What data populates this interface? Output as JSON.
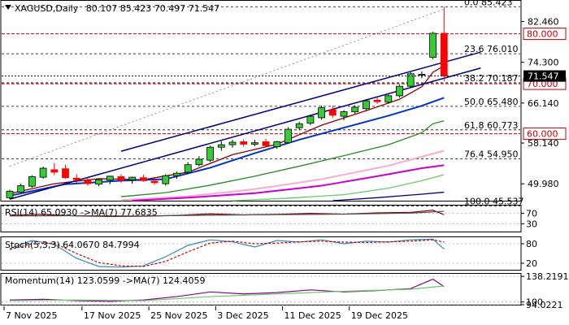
{
  "header": {
    "symbol": "XAGUSD,Daily",
    "ohlc": "80.107 85.423 70.497 71.547"
  },
  "colors": {
    "background": "#ffffff",
    "bull_candle": "#33cc33",
    "bear_candle": "#ff0000",
    "wick": "#000000",
    "price_line": "#000000",
    "channel": "#000080",
    "fib": "#000000",
    "resistance": "#cc0000",
    "ema_short": "#8b0000",
    "ema_mid": "#0033cc",
    "ema_long": "#228b22",
    "ema_pink": "#ffaacc",
    "ema_magenta": "#cc00cc",
    "ema_light_green": "#66cc66",
    "ema_navy": "#000080",
    "rsi_line": "#8b0000",
    "rsi_ma": "#4d4d4d",
    "stoch_k": "#2e8bc0",
    "stoch_d": "#cc0000",
    "momentum_line": "#8b008b",
    "momentum_ma": "#66cc66",
    "current_price_bg": "#000000"
  },
  "chart_data": [
    {
      "type": "candlestick",
      "title": "XAGUSD,Daily 80.107 85.423 70.497 71.547",
      "ylim": [
        46.6,
        86.6
      ],
      "x_labels": [
        "7 Nov 2025",
        "17 Nov 2025",
        "25 Nov 2025",
        "3 Dec 2025",
        "11 Dec 2025",
        "19 Dec 2025"
      ],
      "y_ticks": [
        "82.460",
        "74.300",
        "66.140",
        "58.140",
        "49.980"
      ],
      "candles": [
        {
          "o": 47.2,
          "h": 48.8,
          "l": 46.9,
          "c": 48.5
        },
        {
          "o": 48.3,
          "h": 50.0,
          "l": 48.0,
          "c": 49.6
        },
        {
          "o": 49.5,
          "h": 51.7,
          "l": 49.2,
          "c": 51.4
        },
        {
          "o": 51.3,
          "h": 53.4,
          "l": 51.0,
          "c": 53.1
        },
        {
          "o": 52.8,
          "h": 54.1,
          "l": 51.7,
          "c": 52.3
        },
        {
          "o": 53.0,
          "h": 53.8,
          "l": 51.0,
          "c": 51.2
        },
        {
          "o": 51.1,
          "h": 51.9,
          "l": 50.2,
          "c": 50.8
        },
        {
          "o": 50.6,
          "h": 51.3,
          "l": 49.6,
          "c": 50.0
        },
        {
          "o": 49.9,
          "h": 51.0,
          "l": 49.5,
          "c": 50.8
        },
        {
          "o": 50.7,
          "h": 51.6,
          "l": 49.9,
          "c": 51.5
        },
        {
          "o": 51.4,
          "h": 51.9,
          "l": 50.2,
          "c": 50.7
        },
        {
          "o": 50.8,
          "h": 51.4,
          "l": 50.0,
          "c": 51.3
        },
        {
          "o": 51.2,
          "h": 51.8,
          "l": 50.4,
          "c": 50.6
        },
        {
          "o": 50.5,
          "h": 51.1,
          "l": 49.8,
          "c": 50.2
        },
        {
          "o": 50.0,
          "h": 51.9,
          "l": 49.6,
          "c": 51.6
        },
        {
          "o": 51.6,
          "h": 52.4,
          "l": 51.0,
          "c": 52.1
        },
        {
          "o": 52.3,
          "h": 54.3,
          "l": 51.9,
          "c": 53.8
        },
        {
          "o": 53.8,
          "h": 55.5,
          "l": 53.5,
          "c": 54.9
        },
        {
          "o": 54.7,
          "h": 57.6,
          "l": 54.3,
          "c": 57.3
        },
        {
          "o": 57.3,
          "h": 58.5,
          "l": 56.6,
          "c": 57.8
        },
        {
          "o": 57.8,
          "h": 58.8,
          "l": 57.2,
          "c": 58.3
        },
        {
          "o": 58.4,
          "h": 58.9,
          "l": 57.4,
          "c": 57.9
        },
        {
          "o": 57.9,
          "h": 58.8,
          "l": 57.5,
          "c": 58.2
        },
        {
          "o": 58.4,
          "h": 59.0,
          "l": 57.3,
          "c": 57.6
        },
        {
          "o": 57.4,
          "h": 58.6,
          "l": 57.0,
          "c": 58.4
        },
        {
          "o": 58.2,
          "h": 61.3,
          "l": 58.0,
          "c": 60.9
        },
        {
          "o": 61.2,
          "h": 62.4,
          "l": 60.8,
          "c": 62.0
        },
        {
          "o": 62.1,
          "h": 63.8,
          "l": 61.7,
          "c": 63.5
        },
        {
          "o": 63.2,
          "h": 65.6,
          "l": 62.8,
          "c": 65.2
        },
        {
          "o": 64.8,
          "h": 65.6,
          "l": 63.2,
          "c": 63.7
        },
        {
          "o": 63.5,
          "h": 64.7,
          "l": 62.7,
          "c": 64.4
        },
        {
          "o": 64.4,
          "h": 65.7,
          "l": 64.0,
          "c": 65.3
        },
        {
          "o": 65.0,
          "h": 66.8,
          "l": 64.6,
          "c": 66.6
        },
        {
          "o": 66.7,
          "h": 67.4,
          "l": 66.0,
          "c": 66.4
        },
        {
          "o": 66.3,
          "h": 67.9,
          "l": 66.0,
          "c": 67.6
        },
        {
          "o": 67.6,
          "h": 69.8,
          "l": 67.2,
          "c": 69.5
        },
        {
          "o": 69.5,
          "h": 72.3,
          "l": 69.2,
          "c": 72.0
        },
        {
          "o": 71.8,
          "h": 72.5,
          "l": 71.1,
          "c": 71.9
        },
        {
          "o": 75.3,
          "h": 80.4,
          "l": 74.9,
          "c": 80.1
        },
        {
          "o": 80.107,
          "h": 85.423,
          "l": 70.497,
          "c": 71.547
        }
      ],
      "fib_levels": [
        {
          "label": "0.0 85.423",
          "value": 85.423
        },
        {
          "label": "23.6 76.010",
          "value": 76.01
        },
        {
          "label": "38.2 70.187",
          "value": 70.187
        },
        {
          "label": "50.0 65.480",
          "value": 65.48
        },
        {
          "label": "61.8 60.773",
          "value": 60.773
        },
        {
          "label": "76.4 54.950",
          "value": 54.95
        },
        {
          "label": "100.0 45.537",
          "value": 45.537
        }
      ],
      "resistance_levels": [
        {
          "label": "80.000",
          "value": 80.0
        },
        {
          "label": "70.000",
          "value": 70.0
        },
        {
          "label": "60.000",
          "value": 60.0
        }
      ],
      "current_price": {
        "label": "71.547",
        "value": 71.547
      },
      "channel_upper": [
        [
          10,
          56.5
        ],
        [
          39,
          74.3
        ]
      ],
      "channel_lower": [
        [
          0,
          46.9
        ],
        [
          39,
          71.1
        ]
      ],
      "trend_dotted": [
        [
          0,
          53.5
        ],
        [
          39,
          85.0
        ]
      ],
      "moving_averages": [
        {
          "color_key": "ema_short",
          "values": [
            [
              0,
              48.0
            ],
            [
              4,
              50.0
            ],
            [
              8,
              51.0
            ],
            [
              12,
              50.8
            ],
            [
              16,
              52.3
            ],
            [
              20,
              55.8
            ],
            [
              24,
              57.9
            ],
            [
              28,
              61.7
            ],
            [
              32,
              64.6
            ],
            [
              35,
              66.9
            ],
            [
              37,
              69.4
            ],
            [
              38,
              72.3
            ],
            [
              39,
              73.6
            ]
          ]
        },
        {
          "color_key": "ema_mid",
          "values": [
            [
              0,
              47.6
            ],
            [
              5,
              49.9
            ],
            [
              10,
              50.6
            ],
            [
              14,
              50.9
            ],
            [
              18,
              53.2
            ],
            [
              22,
              56.1
            ],
            [
              26,
              58.8
            ],
            [
              30,
              61.2
            ],
            [
              34,
              63.6
            ],
            [
              37,
              65.6
            ],
            [
              39,
              67.2
            ]
          ]
        },
        {
          "color_key": "ema_long",
          "values": [
            [
              10,
              47.4
            ],
            [
              14,
              48.2
            ],
            [
              18,
              49.7
            ],
            [
              22,
              51.5
            ],
            [
              26,
              53.5
            ],
            [
              30,
              55.6
            ],
            [
              34,
              57.8
            ],
            [
              37,
              60.2
            ],
            [
              38,
              62.0
            ],
            [
              39,
              62.6
            ]
          ]
        },
        {
          "color_key": "ema_pink",
          "values": [
            [
              10,
              46.7
            ],
            [
              16,
              47.5
            ],
            [
              22,
              48.9
            ],
            [
              28,
              50.9
            ],
            [
              34,
              53.6
            ],
            [
              39,
              56.6
            ]
          ]
        },
        {
          "color_key": "ema_magenta",
          "values": [
            [
              11,
              46.6
            ],
            [
              16,
              47.2
            ],
            [
              22,
              48.1
            ],
            [
              28,
              49.6
            ],
            [
              33,
              51.5
            ],
            [
              37,
              53.1
            ],
            [
              39,
              53.7
            ]
          ]
        },
        {
          "color_key": "ema_light_green",
          "values": [
            [
              20,
              46.6
            ],
            [
              25,
              47.1
            ],
            [
              30,
              47.8
            ],
            [
              34,
              49.1
            ],
            [
              37,
              50.6
            ],
            [
              39,
              51.8
            ]
          ]
        },
        {
          "color_key": "ema_navy",
          "values": [
            [
              29,
              46.6
            ],
            [
              33,
              47.2
            ],
            [
              37,
              47.9
            ],
            [
              39,
              48.3
            ]
          ]
        }
      ]
    },
    {
      "type": "line",
      "title": "RSI(14) 65.0930 ->MA(7) 77.6835",
      "ylim": [
        0,
        100
      ],
      "y_ticks": [
        "70",
        "30"
      ],
      "y_tick_values": [
        70,
        30
      ],
      "series": [
        {
          "color_key": "rsi_line",
          "values": [
            [
              0,
              62
            ],
            [
              3,
              66
            ],
            [
              6,
              60
            ],
            [
              9,
              58
            ],
            [
              12,
              59
            ],
            [
              15,
              62
            ],
            [
              18,
              68
            ],
            [
              21,
              64
            ],
            [
              24,
              66
            ],
            [
              27,
              70
            ],
            [
              30,
              67
            ],
            [
              33,
              72
            ],
            [
              36,
              74
            ],
            [
              38,
              82
            ],
            [
              39,
              65
            ]
          ]
        },
        {
          "color_key": "rsi_ma",
          "values": [
            [
              0,
              60
            ],
            [
              6,
              61
            ],
            [
              12,
              60
            ],
            [
              18,
              63
            ],
            [
              24,
              65
            ],
            [
              30,
              67
            ],
            [
              36,
              71
            ],
            [
              39,
              78
            ]
          ]
        }
      ]
    },
    {
      "type": "line",
      "title": "Stoch(5,3,3) 64.0670 84.7994",
      "ylim": [
        0,
        100
      ],
      "y_ticks": [
        "80",
        "20"
      ],
      "y_tick_values": [
        80,
        20
      ],
      "series": [
        {
          "color_key": "stoch_k",
          "values": [
            [
              0,
              65
            ],
            [
              2,
              90
            ],
            [
              4,
              78
            ],
            [
              6,
              35
            ],
            [
              8,
              10
            ],
            [
              10,
              8
            ],
            [
              12,
              12
            ],
            [
              14,
              40
            ],
            [
              16,
              75
            ],
            [
              18,
              92
            ],
            [
              20,
              86
            ],
            [
              22,
              70
            ],
            [
              24,
              90
            ],
            [
              26,
              85
            ],
            [
              28,
              92
            ],
            [
              30,
              80
            ],
            [
              32,
              88
            ],
            [
              34,
              85
            ],
            [
              36,
              92
            ],
            [
              38,
              94
            ],
            [
              39,
              64
            ]
          ]
        },
        {
          "color_key": "stoch_d",
          "values": [
            [
              0,
              62
            ],
            [
              2,
              80
            ],
            [
              4,
              82
            ],
            [
              6,
              50
            ],
            [
              8,
              22
            ],
            [
              10,
              12
            ],
            [
              12,
              10
            ],
            [
              14,
              26
            ],
            [
              16,
              55
            ],
            [
              18,
              82
            ],
            [
              20,
              88
            ],
            [
              22,
              80
            ],
            [
              24,
              82
            ],
            [
              26,
              86
            ],
            [
              28,
              88
            ],
            [
              30,
              85
            ],
            [
              32,
              84
            ],
            [
              34,
              86
            ],
            [
              36,
              88
            ],
            [
              38,
              92
            ],
            [
              39,
              85
            ]
          ]
        }
      ]
    },
    {
      "type": "line",
      "title": "Momentum(14) 123.0599 ->MA(7) 124.4059",
      "ylim": [
        96,
        142
      ],
      "y_ticks": [
        "138.2191",
        "100",
        "94.0221"
      ],
      "y_tick_values": [
        138.2191,
        100,
        94.0221
      ],
      "series": [
        {
          "color_key": "momentum_line",
          "values": [
            [
              0,
              103
            ],
            [
              3,
              104
            ],
            [
              6,
              102
            ],
            [
              9,
              101
            ],
            [
              12,
              103
            ],
            [
              15,
              108
            ],
            [
              18,
              115
            ],
            [
              21,
              112
            ],
            [
              24,
              114
            ],
            [
              27,
              118
            ],
            [
              30,
              115
            ],
            [
              33,
              117
            ],
            [
              36,
              120
            ],
            [
              38,
              134
            ],
            [
              39,
              123
            ]
          ]
        },
        {
          "color_key": "momentum_ma",
          "values": [
            [
              0,
              102
            ],
            [
              6,
              103
            ],
            [
              12,
              102
            ],
            [
              18,
              108
            ],
            [
              24,
              112
            ],
            [
              30,
              116
            ],
            [
              36,
              119
            ],
            [
              39,
              124
            ]
          ]
        }
      ]
    }
  ]
}
